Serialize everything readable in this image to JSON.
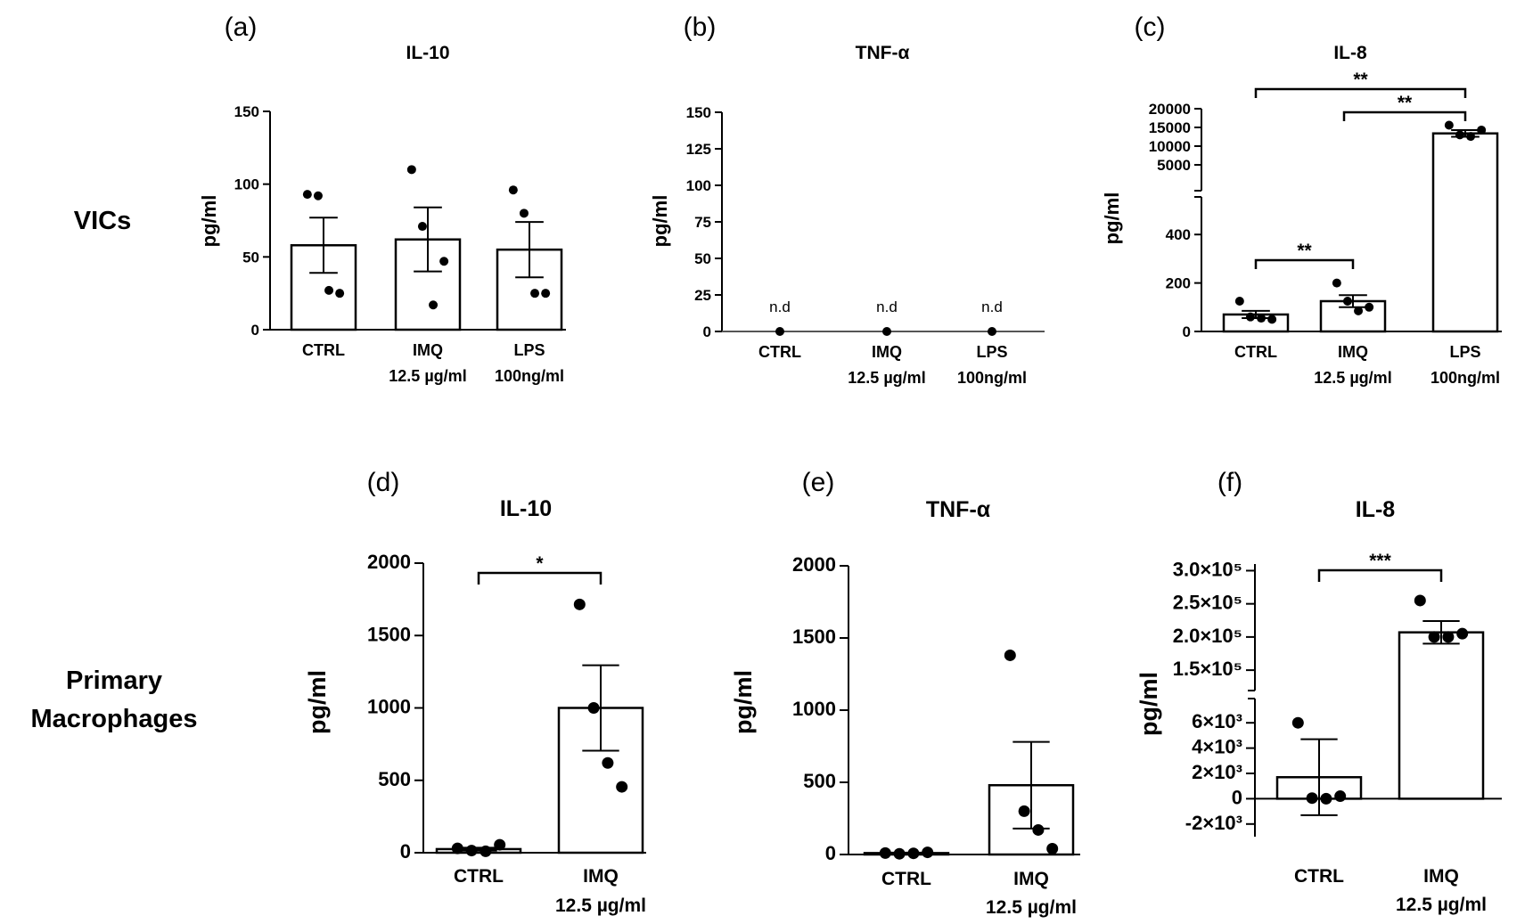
{
  "row_labels": {
    "top": "VICs",
    "bottom_line1": "Primary",
    "bottom_line2": "Macrophages"
  },
  "chart_data": [
    {
      "id": "a",
      "letter": "(a)",
      "type": "bar",
      "title": "IL-10",
      "ylabel": "pg/ml",
      "ylim": [
        0,
        150
      ],
      "yticks": [
        "0",
        "50",
        "100",
        "150"
      ],
      "ytick_values": [
        0,
        50,
        100,
        150
      ],
      "categories": [
        {
          "label": "CTRL",
          "label2": ""
        },
        {
          "label": "IMQ",
          "label2": "12.5 µg/ml"
        },
        {
          "label": "LPS",
          "label2": "100ng/ml"
        }
      ],
      "values": [
        58,
        62,
        55
      ],
      "sem": [
        19,
        22,
        19
      ],
      "points": [
        [
          93,
          92,
          27,
          25
        ],
        [
          110,
          71,
          17,
          47
        ],
        [
          96,
          80,
          25,
          25
        ]
      ],
      "significance": []
    },
    {
      "id": "b",
      "letter": "(b)",
      "type": "bar",
      "title": "TNF-α",
      "ylabel": "pg/ml",
      "ylim": [
        0,
        150
      ],
      "yticks": [
        "0",
        "25",
        "50",
        "75",
        "100",
        "125",
        "150"
      ],
      "ytick_values": [
        0,
        25,
        50,
        75,
        100,
        125,
        150
      ],
      "categories": [
        {
          "label": "CTRL",
          "label2": ""
        },
        {
          "label": "IMQ",
          "label2": "12.5 µg/ml"
        },
        {
          "label": "LPS",
          "label2": "100ng/ml"
        }
      ],
      "values": [
        0,
        0,
        0
      ],
      "sem": [
        0,
        0,
        0
      ],
      "points": [
        [
          0
        ],
        [
          0
        ],
        [
          0
        ]
      ],
      "annotations": [
        "n.d",
        "n.d",
        "n.d"
      ],
      "significance": []
    },
    {
      "id": "c",
      "letter": "(c)",
      "type": "bar",
      "title": "IL-8",
      "ylabel": "pg/ml",
      "broken_axis": true,
      "ylim_lower": [
        0,
        500
      ],
      "ylim_upper": [
        0,
        20000
      ],
      "yticks_lower": [
        "0",
        "200",
        "400"
      ],
      "ytick_values_lower": [
        0,
        200,
        400
      ],
      "yticks_upper": [
        "5000",
        "10000",
        "15000",
        "20000"
      ],
      "ytick_values_upper": [
        5000,
        10000,
        15000,
        20000
      ],
      "categories": [
        {
          "label": "CTRL",
          "label2": ""
        },
        {
          "label": "IMQ",
          "label2": "12.5 µg/ml"
        },
        {
          "label": "LPS",
          "label2": "100ng/ml"
        }
      ],
      "values": [
        70,
        125,
        13400
      ],
      "sem": [
        15,
        25,
        900
      ],
      "points": [
        [
          125,
          60,
          55,
          50
        ],
        [
          200,
          125,
          85,
          100
        ],
        [
          15600,
          13000,
          12600,
          14300
        ]
      ],
      "significance": [
        {
          "from": 0,
          "to": 1,
          "label": "**"
        },
        {
          "from": 1,
          "to": 2,
          "label": "**"
        },
        {
          "from": 0,
          "to": 2,
          "label": "**"
        }
      ]
    },
    {
      "id": "d",
      "letter": "(d)",
      "type": "bar",
      "title": "IL-10",
      "ylabel": "pg/ml",
      "ylim": [
        0,
        2000
      ],
      "yticks": [
        "0",
        "500",
        "1000",
        "1500",
        "2000"
      ],
      "ytick_values": [
        0,
        500,
        1000,
        1500,
        2000
      ],
      "categories": [
        {
          "label": "CTRL",
          "label2": ""
        },
        {
          "label": "IMQ",
          "label2": "12.5 µg/ml"
        }
      ],
      "values": [
        25,
        1000
      ],
      "sem": [
        10,
        295
      ],
      "points": [
        [
          30,
          15,
          10,
          55
        ],
        [
          1715,
          1000,
          620,
          455
        ]
      ],
      "significance": [
        {
          "from": 0,
          "to": 1,
          "label": "*"
        }
      ]
    },
    {
      "id": "e",
      "letter": "(e)",
      "type": "bar",
      "title": "TNF-α",
      "ylabel": "pg/ml",
      "ylim": [
        0,
        2000
      ],
      "yticks": [
        "0",
        "500",
        "1000",
        "1500",
        "2000"
      ],
      "ytick_values": [
        0,
        500,
        1000,
        1500,
        2000
      ],
      "categories": [
        {
          "label": "CTRL",
          "label2": ""
        },
        {
          "label": "IMQ",
          "label2": "12.5 µg/ml"
        }
      ],
      "values": [
        10,
        480
      ],
      "sem": [
        3,
        300
      ],
      "points": [
        [
          10,
          5,
          8,
          15
        ],
        [
          1380,
          300,
          170,
          40
        ]
      ],
      "significance": []
    },
    {
      "id": "f",
      "letter": "(f)",
      "type": "bar",
      "title": "IL-8",
      "ylabel": "pg/ml",
      "broken_axis": true,
      "ylim_lower": [
        -3000,
        7000
      ],
      "ylim_upper": [
        130000,
        310000
      ],
      "yticks_lower": [
        "-2×10³",
        "0",
        "2×10³",
        "4×10³",
        "6×10³"
      ],
      "ytick_values_lower": [
        -2000,
        0,
        2000,
        4000,
        6000
      ],
      "yticks_upper": [
        "1.5×10⁵",
        "2.0×10⁵",
        "2.5×10⁵",
        "3.0×10⁵"
      ],
      "ytick_values_upper": [
        150000,
        200000,
        250000,
        300000
      ],
      "categories": [
        {
          "label": "CTRL",
          "label2": ""
        },
        {
          "label": "IMQ",
          "label2": "12.5 µg/ml"
        }
      ],
      "values": [
        1700,
        207000
      ],
      "sem": [
        3000,
        17000
      ],
      "points": [
        [
          6000,
          50,
          0,
          200
        ],
        [
          255000,
          200000,
          200000,
          205000
        ]
      ],
      "significance": [
        {
          "from": 0,
          "to": 1,
          "label": "***"
        }
      ]
    }
  ]
}
